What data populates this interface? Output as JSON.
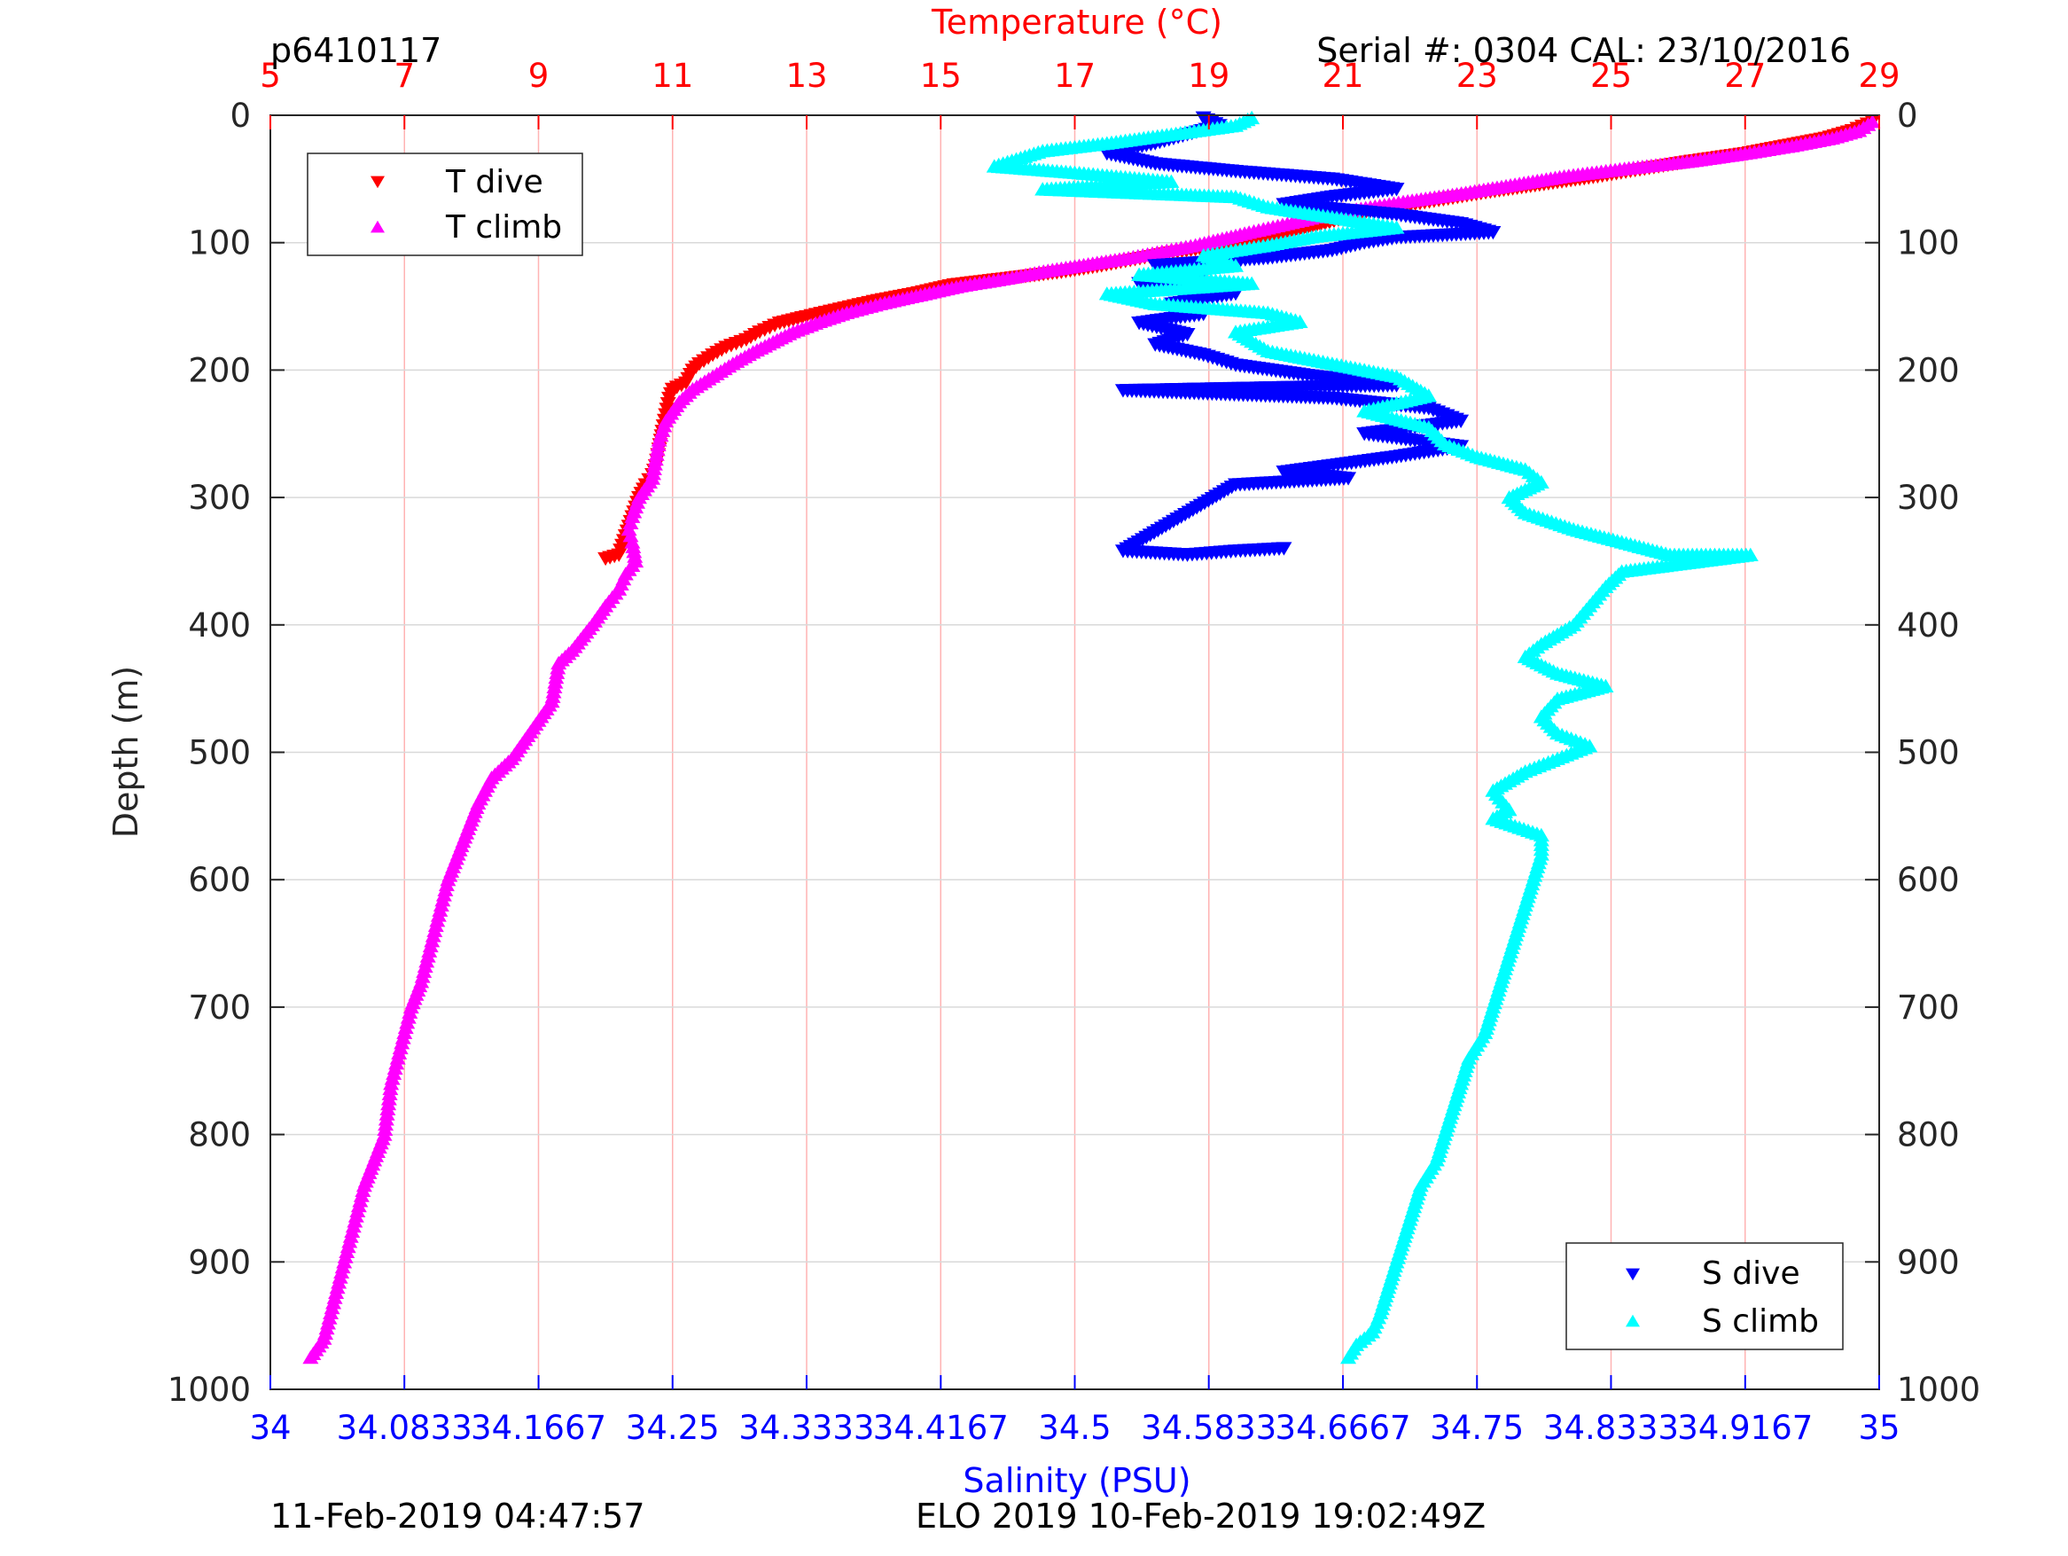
{
  "header": {
    "profile_id": "p6410117",
    "serial": "Serial #: 0304  CAL: 23/10/2016"
  },
  "footer": {
    "left": "11-Feb-2019 04:47:57",
    "right": "ELO 2019 10-Feb-2019 19:02:49Z"
  },
  "colors": {
    "t_dive": "#ff0000",
    "t_climb": "#ff00ff",
    "s_dive": "#0000ff",
    "s_climb": "#00ffff",
    "top_axis": "#ff0000",
    "bottom_axis": "#0000ff",
    "grid_vertical": "#ffb3b3",
    "grid_horizontal": "#d9d9d9"
  },
  "chart_data": {
    "type": "scatter",
    "y_axis": {
      "label": "Depth (m)",
      "lim": [
        0,
        1000
      ],
      "reversed": true,
      "ticks": [
        0,
        100,
        200,
        300,
        400,
        500,
        600,
        700,
        800,
        900,
        1000
      ],
      "tick_labels": [
        "0",
        "100",
        "200",
        "300",
        "400",
        "500",
        "600",
        "700",
        "800",
        "900",
        "1000"
      ]
    },
    "temperature_axis": {
      "label": "Temperature (°C)",
      "position": "top",
      "lim": [
        5,
        29
      ],
      "ticks": [
        5,
        7,
        9,
        11,
        13,
        15,
        17,
        19,
        21,
        23,
        25,
        27,
        29
      ],
      "tick_labels": [
        "5",
        "7",
        "9",
        "11",
        "13",
        "15",
        "17",
        "19",
        "21",
        "23",
        "25",
        "27",
        "29"
      ]
    },
    "salinity_axis": {
      "label": "Salinity (PSU)",
      "position": "bottom",
      "lim": [
        34,
        35
      ],
      "ticks": [
        34,
        34.0833,
        34.1667,
        34.25,
        34.3333,
        34.4167,
        34.5,
        34.5833,
        34.6667,
        34.75,
        34.8333,
        34.9167,
        35
      ],
      "tick_labels": [
        "34",
        "34.0833",
        "34.1667",
        "34.25",
        "34.3333",
        "34.4167",
        "34.5",
        "34.5833",
        "34.6667",
        "34.75",
        "34.8333",
        "34.9167",
        "35"
      ]
    },
    "grid": true,
    "legends": [
      {
        "placement": "top-left",
        "entries": [
          "T dive",
          "T climb"
        ]
      },
      {
        "placement": "bottom-right",
        "entries": [
          "S dive",
          "S climb"
        ]
      }
    ],
    "series": [
      {
        "name": "T dive",
        "axis": "temperature",
        "marker": "triangle-down",
        "points": [
          [
            28.9,
            5
          ],
          [
            28.6,
            12
          ],
          [
            28.2,
            18
          ],
          [
            27.6,
            24
          ],
          [
            27.0,
            30
          ],
          [
            26.2,
            36
          ],
          [
            25.5,
            42
          ],
          [
            24.8,
            48
          ],
          [
            24.0,
            54
          ],
          [
            23.2,
            60
          ],
          [
            22.5,
            66
          ],
          [
            21.8,
            72
          ],
          [
            21.2,
            78
          ],
          [
            20.8,
            84
          ],
          [
            20.4,
            90
          ],
          [
            20.0,
            95
          ],
          [
            19.5,
            100
          ],
          [
            19.0,
            104
          ],
          [
            18.4,
            108
          ],
          [
            17.9,
            113
          ],
          [
            17.4,
            118
          ],
          [
            16.8,
            123
          ],
          [
            16.0,
            128
          ],
          [
            15.2,
            133
          ],
          [
            14.6,
            140
          ],
          [
            14.0,
            146
          ],
          [
            13.5,
            152
          ],
          [
            13.0,
            158
          ],
          [
            12.6,
            163
          ],
          [
            12.3,
            170
          ],
          [
            12.1,
            176
          ],
          [
            11.8,
            182
          ],
          [
            11.6,
            188
          ],
          [
            11.4,
            195
          ],
          [
            11.3,
            200
          ],
          [
            11.2,
            210
          ],
          [
            11.0,
            215
          ],
          [
            10.95,
            222
          ],
          [
            10.9,
            235
          ],
          [
            10.85,
            248
          ],
          [
            10.8,
            262
          ],
          [
            10.75,
            275
          ],
          [
            10.7,
            282
          ],
          [
            10.6,
            290
          ],
          [
            10.5,
            300
          ],
          [
            10.4,
            315
          ],
          [
            10.3,
            330
          ],
          [
            10.2,
            345
          ],
          [
            10.0,
            348
          ]
        ]
      },
      {
        "name": "T climb",
        "axis": "temperature",
        "marker": "triangle-up",
        "points": [
          [
            28.9,
            5
          ],
          [
            28.7,
            12
          ],
          [
            28.3,
            18
          ],
          [
            27.7,
            24
          ],
          [
            27.0,
            30
          ],
          [
            26.2,
            36
          ],
          [
            25.2,
            42
          ],
          [
            24.3,
            48
          ],
          [
            23.5,
            55
          ],
          [
            22.7,
            62
          ],
          [
            21.9,
            68
          ],
          [
            21.2,
            74
          ],
          [
            20.6,
            80
          ],
          [
            20.1,
            86
          ],
          [
            19.6,
            92
          ],
          [
            19.2,
            97
          ],
          [
            18.8,
            102
          ],
          [
            18.3,
            107
          ],
          [
            17.8,
            112
          ],
          [
            17.2,
            117
          ],
          [
            16.6,
            122
          ],
          [
            16.0,
            128
          ],
          [
            15.3,
            134
          ],
          [
            14.7,
            141
          ],
          [
            14.1,
            148
          ],
          [
            13.6,
            155
          ],
          [
            13.2,
            162
          ],
          [
            12.8,
            170
          ],
          [
            12.5,
            178
          ],
          [
            12.2,
            186
          ],
          [
            11.9,
            195
          ],
          [
            11.6,
            205
          ],
          [
            11.3,
            215
          ],
          [
            11.1,
            225
          ],
          [
            10.9,
            240
          ],
          [
            10.8,
            255
          ],
          [
            10.75,
            270
          ],
          [
            10.7,
            285
          ],
          [
            10.5,
            300
          ],
          [
            10.4,
            315
          ],
          [
            10.35,
            325
          ],
          [
            10.4,
            335
          ],
          [
            10.45,
            350
          ],
          [
            10.3,
            360
          ],
          [
            10.2,
            372
          ],
          [
            10.0,
            385
          ],
          [
            9.8,
            400
          ],
          [
            9.5,
            420
          ],
          [
            9.3,
            430
          ],
          [
            9.25,
            445
          ],
          [
            9.2,
            460
          ],
          [
            9.0,
            475
          ],
          [
            8.8,
            490
          ],
          [
            8.6,
            505
          ],
          [
            8.3,
            520
          ],
          [
            8.1,
            540
          ],
          [
            7.95,
            560
          ],
          [
            7.8,
            580
          ],
          [
            7.65,
            600
          ],
          [
            7.55,
            620
          ],
          [
            7.45,
            640
          ],
          [
            7.35,
            660
          ],
          [
            7.25,
            680
          ],
          [
            7.1,
            700
          ],
          [
            7.0,
            720
          ],
          [
            6.9,
            740
          ],
          [
            6.8,
            760
          ],
          [
            6.75,
            780
          ],
          [
            6.7,
            800
          ],
          [
            6.55,
            820
          ],
          [
            6.4,
            840
          ],
          [
            6.3,
            860
          ],
          [
            6.2,
            880
          ],
          [
            6.1,
            900
          ],
          [
            6.0,
            920
          ],
          [
            5.9,
            940
          ],
          [
            5.8,
            960
          ],
          [
            5.6,
            975
          ]
        ]
      },
      {
        "name": "S dive",
        "axis": "salinity",
        "marker": "triangle-down",
        "points": [
          [
            34.58,
            2
          ],
          [
            34.59,
            8
          ],
          [
            34.57,
            15
          ],
          [
            34.55,
            22
          ],
          [
            34.52,
            30
          ],
          [
            34.55,
            38
          ],
          [
            34.6,
            44
          ],
          [
            34.66,
            50
          ],
          [
            34.7,
            58
          ],
          [
            34.66,
            64
          ],
          [
            34.63,
            70
          ],
          [
            34.7,
            78
          ],
          [
            34.74,
            85
          ],
          [
            34.76,
            92
          ],
          [
            34.7,
            96
          ],
          [
            34.68,
            100
          ],
          [
            34.66,
            106
          ],
          [
            34.62,
            112
          ],
          [
            34.55,
            118
          ],
          [
            34.58,
            125
          ],
          [
            34.54,
            132
          ],
          [
            34.6,
            140
          ],
          [
            34.56,
            148
          ],
          [
            34.58,
            156
          ],
          [
            34.54,
            163
          ],
          [
            34.57,
            172
          ],
          [
            34.55,
            180
          ],
          [
            34.58,
            188
          ],
          [
            34.6,
            196
          ],
          [
            34.65,
            205
          ],
          [
            34.7,
            212
          ],
          [
            34.53,
            216
          ],
          [
            34.66,
            222
          ],
          [
            34.72,
            230
          ],
          [
            34.74,
            240
          ],
          [
            34.68,
            250
          ],
          [
            34.74,
            260
          ],
          [
            34.7,
            268
          ],
          [
            34.63,
            280
          ],
          [
            34.67,
            285
          ],
          [
            34.6,
            290
          ],
          [
            34.53,
            342
          ],
          [
            34.57,
            345
          ],
          [
            34.6,
            342
          ],
          [
            34.63,
            340
          ]
        ]
      },
      {
        "name": "S climb",
        "axis": "salinity",
        "marker": "triangle-up",
        "points": [
          [
            34.61,
            2
          ],
          [
            34.6,
            8
          ],
          [
            34.56,
            15
          ],
          [
            34.52,
            22
          ],
          [
            34.48,
            28
          ],
          [
            34.45,
            40
          ],
          [
            34.5,
            45
          ],
          [
            34.56,
            52
          ],
          [
            34.48,
            58
          ],
          [
            34.6,
            64
          ],
          [
            34.62,
            72
          ],
          [
            34.66,
            80
          ],
          [
            34.7,
            88
          ],
          [
            34.65,
            95
          ],
          [
            34.62,
            102
          ],
          [
            34.58,
            110
          ],
          [
            34.6,
            118
          ],
          [
            34.54,
            125
          ],
          [
            34.61,
            132
          ],
          [
            34.52,
            140
          ],
          [
            34.55,
            148
          ],
          [
            34.62,
            155
          ],
          [
            34.64,
            162
          ],
          [
            34.6,
            170
          ],
          [
            34.62,
            185
          ],
          [
            34.66,
            195
          ],
          [
            34.7,
            205
          ],
          [
            34.72,
            220
          ],
          [
            34.68,
            232
          ],
          [
            34.72,
            245
          ],
          [
            34.73,
            258
          ],
          [
            34.75,
            268
          ],
          [
            34.78,
            278
          ],
          [
            34.79,
            288
          ],
          [
            34.77,
            300
          ],
          [
            34.78,
            312
          ],
          [
            34.81,
            325
          ],
          [
            34.84,
            335
          ],
          [
            34.87,
            345
          ],
          [
            34.92,
            345
          ],
          [
            34.84,
            358
          ],
          [
            34.83,
            370
          ],
          [
            34.82,
            385
          ],
          [
            34.81,
            400
          ],
          [
            34.79,
            415
          ],
          [
            34.78,
            425
          ],
          [
            34.8,
            438
          ],
          [
            34.83,
            448
          ],
          [
            34.8,
            458
          ],
          [
            34.79,
            472
          ],
          [
            34.8,
            485
          ],
          [
            34.82,
            495
          ],
          [
            34.8,
            505
          ],
          [
            34.78,
            515
          ],
          [
            34.76,
            530
          ],
          [
            34.77,
            545
          ],
          [
            34.76,
            552
          ],
          [
            34.79,
            565
          ],
          [
            34.79,
            580
          ],
          [
            34.785,
            600
          ],
          [
            34.78,
            620
          ],
          [
            34.775,
            640
          ],
          [
            34.77,
            660
          ],
          [
            34.765,
            680
          ],
          [
            34.76,
            700
          ],
          [
            34.755,
            720
          ],
          [
            34.745,
            740
          ],
          [
            34.74,
            760
          ],
          [
            34.735,
            780
          ],
          [
            34.73,
            800
          ],
          [
            34.725,
            820
          ],
          [
            34.715,
            840
          ],
          [
            34.71,
            860
          ],
          [
            34.705,
            880
          ],
          [
            34.7,
            900
          ],
          [
            34.695,
            920
          ],
          [
            34.69,
            940
          ],
          [
            34.685,
            955
          ],
          [
            34.675,
            965
          ],
          [
            34.67,
            975
          ]
        ]
      }
    ]
  }
}
